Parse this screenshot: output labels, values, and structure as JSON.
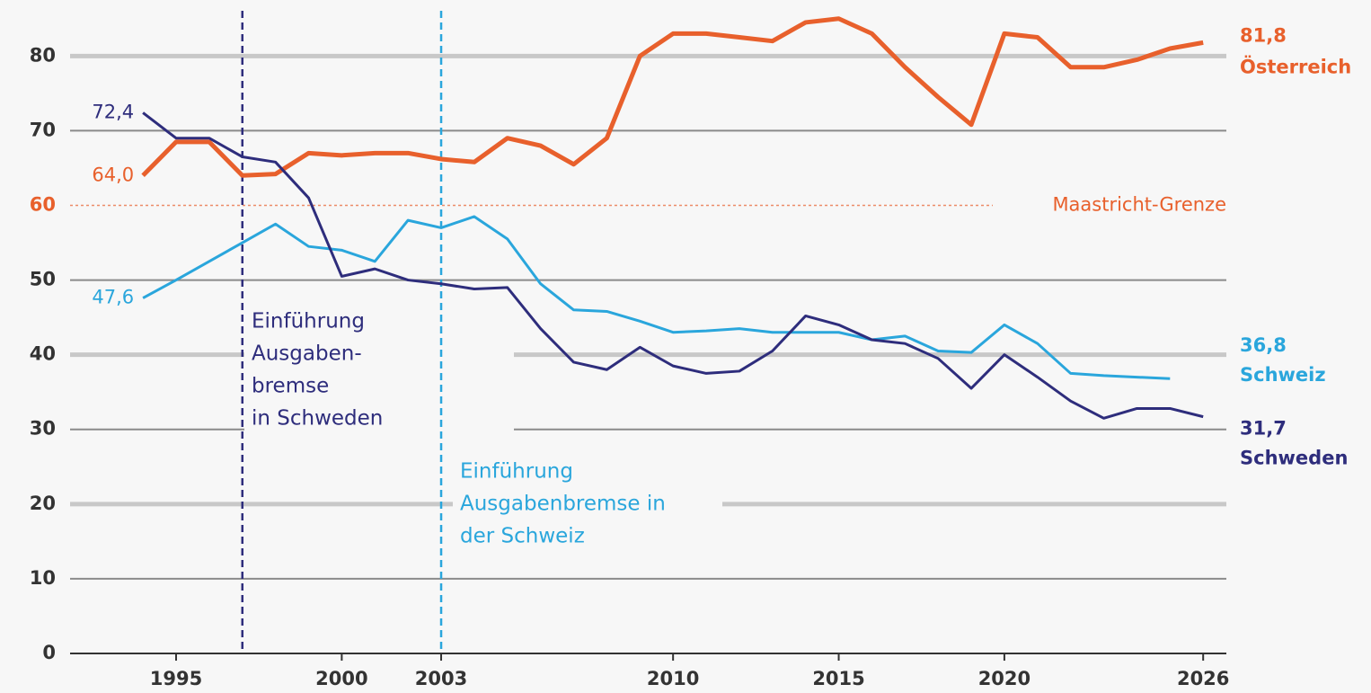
{
  "chart_data": {
    "type": "line",
    "x": [
      1994,
      1995,
      1996,
      1997,
      1998,
      1999,
      2000,
      2001,
      2002,
      2003,
      2004,
      2005,
      2006,
      2007,
      2008,
      2009,
      2010,
      2011,
      2012,
      2013,
      2014,
      2015,
      2016,
      2017,
      2018,
      2019,
      2020,
      2021,
      2022,
      2023,
      2024,
      2025,
      2026
    ],
    "series": [
      {
        "name": "Österreich",
        "color": "#e8602c",
        "values": [
          64.0,
          68.5,
          68.5,
          64,
          64.2,
          67,
          66.7,
          67,
          67,
          66.2,
          65.8,
          69,
          68,
          65.5,
          69,
          80,
          83,
          83,
          82.5,
          82,
          84.5,
          85,
          83,
          78.5,
          74.5,
          70.8,
          83,
          82.5,
          78.5,
          78.5,
          79.5,
          81,
          81.8
        ],
        "value_labels": [
          "64,0",
          null,
          null,
          null,
          null,
          null,
          null,
          null,
          null,
          null,
          null,
          null,
          null,
          null,
          null,
          null,
          null,
          null,
          null,
          null,
          null,
          null,
          null,
          null,
          null,
          null,
          null,
          null,
          null,
          null,
          null,
          null,
          "81,8"
        ]
      },
      {
        "name": "Schweiz",
        "color": "#2aa6dc",
        "values": [
          47.6,
          50,
          52.5,
          55,
          57.5,
          54.5,
          54,
          52.5,
          58,
          57,
          58.5,
          55.5,
          49.5,
          46,
          45.8,
          44.5,
          43,
          43.2,
          43.5,
          43,
          43,
          43,
          42,
          42.5,
          40.5,
          40.3,
          44,
          41.5,
          37.5,
          37.2,
          37,
          36.8,
          null
        ],
        "value_labels": [
          "47,6",
          null,
          null,
          null,
          null,
          null,
          null,
          null,
          null,
          null,
          null,
          null,
          null,
          null,
          null,
          null,
          null,
          null,
          null,
          null,
          null,
          null,
          null,
          null,
          null,
          null,
          null,
          null,
          null,
          null,
          null,
          "36,8",
          null
        ]
      },
      {
        "name": "Schweden",
        "color": "#2e2d7c",
        "values": [
          72.4,
          69,
          69,
          66.5,
          65.8,
          61,
          50.5,
          51.5,
          50,
          49.5,
          48.8,
          49,
          43.5,
          39,
          38,
          41,
          38.5,
          37.5,
          37.8,
          40.5,
          45.2,
          44,
          42,
          41.5,
          39.5,
          35.5,
          40,
          37,
          33.8,
          31.5,
          32.8,
          32.8,
          31.7
        ],
        "value_labels": [
          "72,4",
          null,
          null,
          null,
          null,
          null,
          null,
          null,
          null,
          null,
          null,
          null,
          null,
          null,
          null,
          null,
          null,
          null,
          null,
          null,
          null,
          null,
          null,
          null,
          null,
          null,
          null,
          null,
          null,
          null,
          null,
          null,
          "31,7"
        ]
      }
    ],
    "xlim": [
      1991.8,
      2026.7
    ],
    "xticks": [
      1995,
      2000,
      2003,
      2010,
      2015,
      2020,
      2026
    ],
    "ylim": [
      0,
      87.5
    ],
    "yticks": [
      0,
      10,
      20,
      30,
      40,
      50,
      60,
      70,
      80
    ],
    "grid": true,
    "reference_line": {
      "value": 60,
      "label": "Maastricht-Grenze",
      "color": "#e8602c"
    },
    "annotations": [
      {
        "x": 1997,
        "color": "#2e2d7c",
        "text": [
          "Einführung",
          "Ausgaben-",
          "bremse",
          "in Schweden"
        ]
      },
      {
        "x": 2003,
        "color": "#2aa6dc",
        "text": [
          "Einführung",
          "Ausgabenbremse in",
          "der Schweiz"
        ]
      }
    ]
  }
}
